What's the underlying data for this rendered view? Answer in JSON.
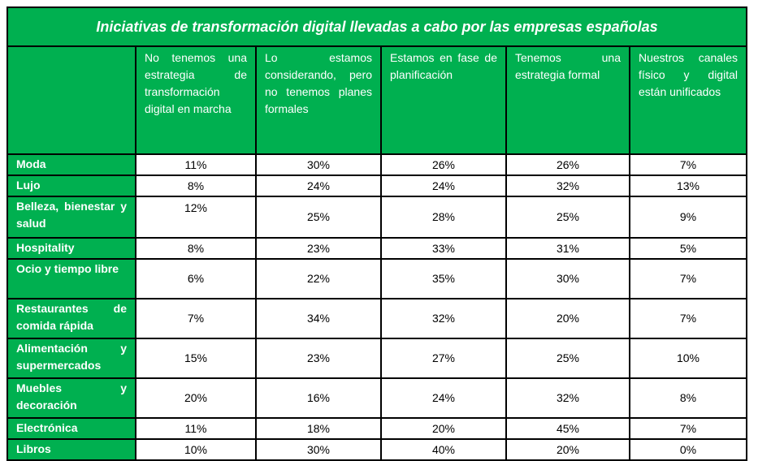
{
  "title": "Iniciativas de transformación digital llevadas a cabo por las empresas españolas",
  "columns": [
    "No tenemos una estrategia de transformación digital en marcha",
    "Lo estamos considerando, pero no tenemos planes formales",
    "Estamos en fase de planificación",
    "Tenemos una estrategia formal",
    "Nuestros canales físico y digital están unificados"
  ],
  "rows": [
    {
      "label": "Moda",
      "values": [
        "11%",
        "30%",
        "26%",
        "26%",
        "7%"
      ]
    },
    {
      "label": "Lujo",
      "values": [
        "8%",
        "24%",
        "24%",
        "32%",
        "13%"
      ]
    },
    {
      "label": "Belleza, bienestar y salud",
      "values": [
        "12%",
        "25%",
        "28%",
        "25%",
        "9%"
      ]
    },
    {
      "label": "Hospitality",
      "values": [
        "8%",
        "23%",
        "33%",
        "31%",
        "5%"
      ]
    },
    {
      "label": "Ocio y tiempo libre",
      "values": [
        "6%",
        "22%",
        "35%",
        "30%",
        "7%"
      ]
    },
    {
      "label": "Restaurantes de comida rápida",
      "values": [
        "7%",
        "34%",
        "32%",
        "20%",
        "7%"
      ]
    },
    {
      "label": "Alimentación y supermercados",
      "values": [
        "15%",
        "23%",
        "27%",
        "25%",
        "10%"
      ]
    },
    {
      "label": "Muebles y decoración",
      "values": [
        "20%",
        "16%",
        "24%",
        "32%",
        "8%"
      ]
    },
    {
      "label": "Electrónica",
      "values": [
        "11%",
        "18%",
        "20%",
        "45%",
        "7%"
      ]
    },
    {
      "label": "Libros",
      "values": [
        "10%",
        "30%",
        "40%",
        "20%",
        "0%"
      ]
    }
  ],
  "colors": {
    "header_bg": "#00b050",
    "header_text": "#ffffff",
    "cell_bg": "#ffffff",
    "border": "#000000"
  }
}
